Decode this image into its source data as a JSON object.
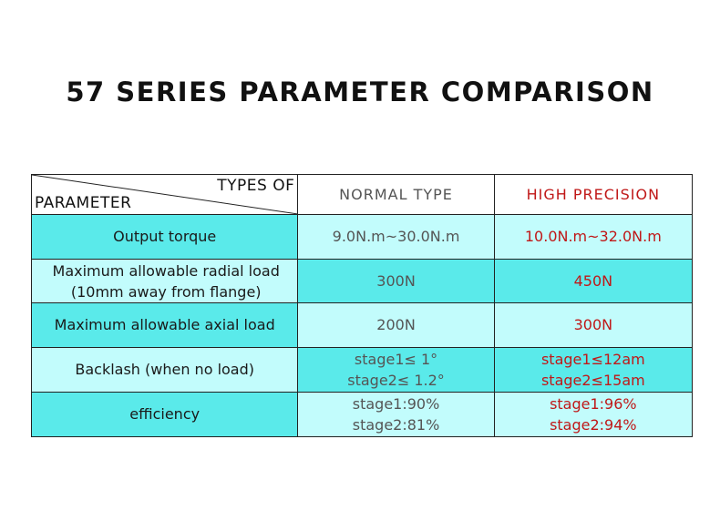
{
  "title": "57 SERIES PARAMETER COMPARISON",
  "header": {
    "types_of": "TYPES OF",
    "parameter": "PARAMETER",
    "normal_type": "NORMAL TYPE",
    "high_precision": "HIGH PRECISION"
  },
  "rows": [
    {
      "label": "Output torque",
      "normal": "9.0N.m~30.0N.m",
      "high": "10.0N.m~32.0N.m"
    },
    {
      "label_lines": [
        "Maximum allowable radial load",
        "(10mm away from flange)"
      ],
      "normal": "300N",
      "high": "450N"
    },
    {
      "label": "Maximum allowable axial load",
      "normal": "200N",
      "high": "300N"
    },
    {
      "label": "Backlash (when no load)",
      "normal_lines": [
        "stage1≤ 1°",
        "stage2≤ 1.2°"
      ],
      "high_lines": [
        "stage1≤12am",
        "stage2≤15am"
      ]
    },
    {
      "label": "efficiency",
      "normal_lines": [
        "stage1:90%",
        "stage2:81%"
      ],
      "high_lines": [
        "stage1:96%",
        "stage2:94%"
      ]
    }
  ],
  "colors": {
    "row_dark": "#5aeaea",
    "row_light": "#c2fcfc",
    "high_precision_text": "#c01818",
    "normal_text": "#555555"
  }
}
